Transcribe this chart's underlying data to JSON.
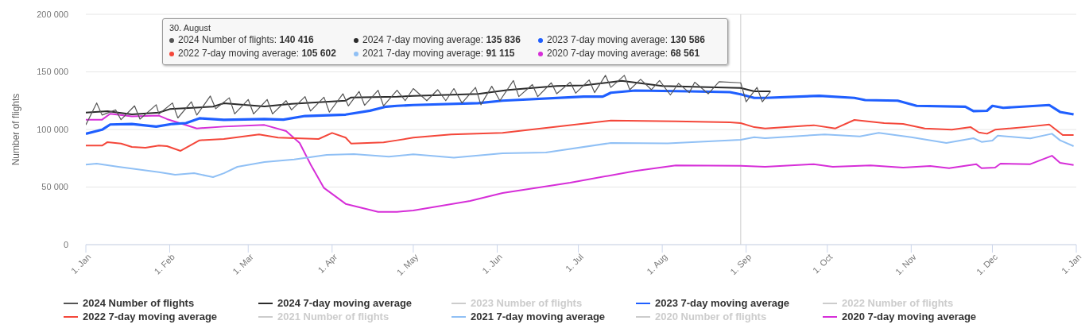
{
  "chart_data": {
    "type": "line",
    "ylabel": "Number of flights",
    "xlim": [
      "2024-01-01",
      "2025-01-01"
    ],
    "xticks": [
      {
        "value": "2024-01-01",
        "label": "1. Jan"
      },
      {
        "value": "2024-02-01",
        "label": "1. Feb"
      },
      {
        "value": "2024-03-01",
        "label": "1. Mar"
      },
      {
        "value": "2024-04-01",
        "label": "1. Apr"
      },
      {
        "value": "2024-05-01",
        "label": "1. May"
      },
      {
        "value": "2024-06-01",
        "label": "1. Jun"
      },
      {
        "value": "2024-07-01",
        "label": "1. Jul"
      },
      {
        "value": "2024-08-01",
        "label": "1. Aug"
      },
      {
        "value": "2024-09-01",
        "label": "1. Sep"
      },
      {
        "value": "2024-10-01",
        "label": "1. Oct"
      },
      {
        "value": "2024-11-01",
        "label": "1. Nov"
      },
      {
        "value": "2024-12-01",
        "label": "1. Dec"
      },
      {
        "value": "2025-01-01",
        "label": "1. Jan"
      }
    ],
    "ylim": [
      0,
      200000
    ],
    "yticks": [
      0,
      {
        "value": 50000,
        "label": "50 000"
      },
      {
        "value": 100000,
        "label": "100 000"
      },
      {
        "value": 150000,
        "label": "150 000"
      },
      {
        "value": 200000,
        "label": "200 000"
      }
    ],
    "grid": "y",
    "legend": "bottom",
    "line_style": "solid",
    "ref_lines": [
      {
        "axis": "x",
        "value": "2024-08-30",
        "color": "#cccccc"
      }
    ],
    "annotations": [
      "30. August",
      "2024 Number of flights: 140 416",
      "2024 7-day moving average: 135 836",
      "2023 7-day moving average: 130 586",
      "2022 7-day moving average: 105 602",
      "2021 7-day moving average: 91 115",
      "2020 7-day moving average: 68 561"
    ],
    "series": [
      {
        "name": "2024 Number of flights",
        "color": "#555555",
        "x": [
          "2024-01-01",
          "2024-01-05",
          "2024-01-07",
          "2024-01-12",
          "2024-01-14",
          "2024-01-19",
          "2024-01-21",
          "2024-01-27",
          "2024-01-28",
          "2024-02-02",
          "2024-02-04",
          "2024-02-09",
          "2024-02-11",
          "2024-02-16",
          "2024-02-18",
          "2024-02-23",
          "2024-02-25",
          "2024-03-01",
          "2024-03-03",
          "2024-03-08",
          "2024-03-10",
          "2024-03-15",
          "2024-03-17",
          "2024-03-22",
          "2024-03-24",
          "2024-03-29",
          "2024-03-31",
          "2024-04-05",
          "2024-04-07",
          "2024-04-11",
          "2024-04-13",
          "2024-04-18",
          "2024-04-20",
          "2024-04-25",
          "2024-04-28",
          "2024-05-01",
          "2024-05-06",
          "2024-05-10",
          "2024-05-13",
          "2024-05-16",
          "2024-05-19",
          "2024-05-24",
          "2024-05-26",
          "2024-05-30",
          "2024-06-02",
          "2024-06-07",
          "2024-06-09",
          "2024-06-14",
          "2024-06-16",
          "2024-06-21",
          "2024-06-23",
          "2024-06-28",
          "2024-06-30",
          "2024-07-05",
          "2024-07-07",
          "2024-07-11",
          "2024-07-13",
          "2024-07-18",
          "2024-07-20",
          "2024-07-24",
          "2024-07-28",
          "2024-07-31",
          "2024-08-04",
          "2024-08-07",
          "2024-08-11",
          "2024-08-13",
          "2024-08-18",
          "2024-08-22",
          "2024-08-30",
          "2024-09-01",
          "2024-09-05",
          "2024-09-07",
          "2024-09-10"
        ],
        "values": [
          104000,
          123000,
          112500,
          117000,
          108500,
          120500,
          109000,
          121500,
          113500,
          123000,
          110000,
          124000,
          112500,
          129000,
          118000,
          127500,
          113500,
          126000,
          113500,
          126000,
          113500,
          125000,
          117000,
          128500,
          116000,
          128000,
          115000,
          131000,
          120500,
          133000,
          121000,
          134000,
          120500,
          134000,
          125000,
          135500,
          125000,
          134500,
          125000,
          135500,
          123000,
          136500,
          121500,
          137500,
          125000,
          142500,
          128500,
          139000,
          128500,
          140500,
          131000,
          141000,
          131500,
          143000,
          132000,
          147000,
          136500,
          147000,
          134500,
          143500,
          134500,
          142500,
          130000,
          140000,
          132000,
          141000,
          131000,
          141500,
          140500,
          124000,
          136500,
          124000,
          133000
        ]
      },
      {
        "name": "2024 7-day moving average",
        "color": "#2b2b2b",
        "x": [
          "2024-01-01",
          "2024-01-09",
          "2024-01-18",
          "2024-01-28",
          "2024-02-01",
          "2024-02-17",
          "2024-02-21",
          "2024-03-07",
          "2024-03-17",
          "2024-04-06",
          "2024-04-08",
          "2024-04-25",
          "2024-05-01",
          "2024-05-25",
          "2024-06-05",
          "2024-06-23",
          "2024-07-03",
          "2024-07-17",
          "2024-08-01",
          "2024-08-21",
          "2024-08-30",
          "2024-09-04",
          "2024-09-10"
        ],
        "values": [
          114700,
          115900,
          113100,
          114700,
          117700,
          119800,
          122800,
          120000,
          122300,
          125000,
          127800,
          128500,
          129200,
          130800,
          134300,
          137700,
          138200,
          142300,
          137700,
          136600,
          136000,
          133100,
          133100
        ]
      },
      {
        "name": "2023 Number of flights",
        "color": "#cccccc"
      },
      {
        "name": "2023 7-day moving average",
        "color": "#1f5fff",
        "x": [
          "2024-01-01",
          "2024-01-07",
          "2024-01-10",
          "2024-01-18",
          "2024-01-27",
          "2024-02-02",
          "2024-02-07",
          "2024-02-12",
          "2024-02-21",
          "2024-03-07",
          "2024-03-14",
          "2024-03-22",
          "2024-04-06",
          "2024-04-15",
          "2024-04-21",
          "2024-04-25",
          "2024-05-01",
          "2024-05-25",
          "2024-06-03",
          "2024-07-03",
          "2024-07-10",
          "2024-07-13",
          "2024-07-22",
          "2024-08-11",
          "2024-08-26",
          "2024-08-30",
          "2024-09-04",
          "2024-09-08",
          "2024-09-28",
          "2024-10-11",
          "2024-10-15",
          "2024-10-27",
          "2024-11-03",
          "2024-11-21",
          "2024-11-24",
          "2024-11-29",
          "2024-12-01",
          "2024-12-05",
          "2024-12-22",
          "2024-12-26",
          "2024-12-31"
        ],
        "values": [
          96300,
          99800,
          104300,
          104800,
          102500,
          104800,
          105500,
          109700,
          108300,
          109000,
          108500,
          111700,
          112900,
          116300,
          119800,
          120500,
          121200,
          122800,
          125000,
          128500,
          128500,
          131900,
          133800,
          133100,
          132400,
          130500,
          127400,
          127400,
          129200,
          127400,
          125500,
          125000,
          120500,
          119800,
          115900,
          116200,
          120500,
          118800,
          121200,
          115200,
          113100
        ]
      },
      {
        "name": "2022 Number of flights",
        "color": "#cccccc"
      },
      {
        "name": "2022 7-day moving average",
        "color": "#f4473a",
        "x": [
          "2024-01-01",
          "2024-01-07",
          "2024-01-09",
          "2024-01-14",
          "2024-01-18",
          "2024-01-23",
          "2024-01-28",
          "2024-01-31",
          "2024-02-05",
          "2024-02-12",
          "2024-02-21",
          "2024-03-05",
          "2024-03-12",
          "2024-03-27",
          "2024-04-01",
          "2024-04-06",
          "2024-04-08",
          "2024-04-20",
          "2024-04-25",
          "2024-05-01",
          "2024-05-15",
          "2024-06-03",
          "2024-07-13",
          "2024-08-06",
          "2024-08-26",
          "2024-08-30",
          "2024-09-04",
          "2024-09-08",
          "2024-09-26",
          "2024-10-04",
          "2024-10-11",
          "2024-10-22",
          "2024-10-29",
          "2024-11-06",
          "2024-11-16",
          "2024-11-23",
          "2024-11-26",
          "2024-11-29",
          "2024-12-02",
          "2024-12-15",
          "2024-12-22",
          "2024-12-27",
          "2024-12-31"
        ],
        "values": [
          86000,
          86000,
          89000,
          87800,
          84800,
          84100,
          86000,
          85500,
          81400,
          90600,
          91700,
          95700,
          92900,
          91700,
          97000,
          92900,
          87800,
          88800,
          90600,
          92900,
          95700,
          97000,
          107800,
          107100,
          106200,
          105500,
          102000,
          100900,
          103700,
          100900,
          108300,
          105500,
          104800,
          100900,
          99800,
          102000,
          97400,
          96300,
          99800,
          102500,
          104300,
          95200,
          95200
        ]
      },
      {
        "name": "2021 Number of flights",
        "color": "#cccccc"
      },
      {
        "name": "2021 7-day moving average",
        "color": "#90c0f5",
        "x": [
          "2024-01-01",
          "2024-01-05",
          "2024-01-13",
          "2024-01-28",
          "2024-02-03",
          "2024-02-10",
          "2024-02-17",
          "2024-02-21",
          "2024-02-26",
          "2024-03-07",
          "2024-03-18",
          "2024-03-30",
          "2024-04-09",
          "2024-04-22",
          "2024-05-01",
          "2024-05-16",
          "2024-06-03",
          "2024-06-19",
          "2024-07-13",
          "2024-08-03",
          "2024-08-24",
          "2024-08-30",
          "2024-09-04",
          "2024-09-08",
          "2024-09-30",
          "2024-10-13",
          "2024-10-20",
          "2024-11-01",
          "2024-11-14",
          "2024-11-24",
          "2024-11-27",
          "2024-12-01",
          "2024-12-03",
          "2024-12-15",
          "2024-12-23",
          "2024-12-26",
          "2024-12-31"
        ],
        "values": [
          69500,
          70300,
          67600,
          63000,
          60700,
          62000,
          58600,
          62000,
          67600,
          71700,
          74000,
          78000,
          78600,
          76300,
          78400,
          75600,
          79300,
          80000,
          88300,
          88000,
          90300,
          91000,
          93300,
          92400,
          95700,
          94000,
          97000,
          93300,
          88300,
          92400,
          89200,
          90300,
          94700,
          92200,
          96300,
          90600,
          85500
        ]
      },
      {
        "name": "2020 Number of flights",
        "color": "#cccccc"
      },
      {
        "name": "2020 7-day moving average",
        "color": "#d62ed8",
        "x": [
          "2024-01-01",
          "2024-01-07",
          "2024-01-10",
          "2024-01-18",
          "2024-01-28",
          "2024-01-31",
          "2024-02-11",
          "2024-02-21",
          "2024-03-07",
          "2024-03-15",
          "2024-03-20",
          "2024-03-24",
          "2024-03-29",
          "2024-04-06",
          "2024-04-18",
          "2024-04-25",
          "2024-05-01",
          "2024-05-22",
          "2024-06-03",
          "2024-06-28",
          "2024-07-22",
          "2024-08-06",
          "2024-08-30",
          "2024-09-08",
          "2024-09-26",
          "2024-10-03",
          "2024-10-17",
          "2024-10-29",
          "2024-11-08",
          "2024-11-15",
          "2024-11-25",
          "2024-11-27",
          "2024-12-02",
          "2024-12-04",
          "2024-12-15",
          "2024-12-23",
          "2024-12-26",
          "2024-12-31"
        ],
        "values": [
          108500,
          108500,
          113600,
          111300,
          112000,
          109000,
          100900,
          102500,
          103900,
          98600,
          88300,
          69900,
          49200,
          35400,
          28500,
          28500,
          29700,
          37900,
          44800,
          53800,
          64000,
          68800,
          68500,
          67600,
          69900,
          67600,
          68800,
          66900,
          68200,
          66400,
          69900,
          66400,
          66900,
          70300,
          69900,
          77200,
          71000,
          69200
        ]
      }
    ]
  }
}
